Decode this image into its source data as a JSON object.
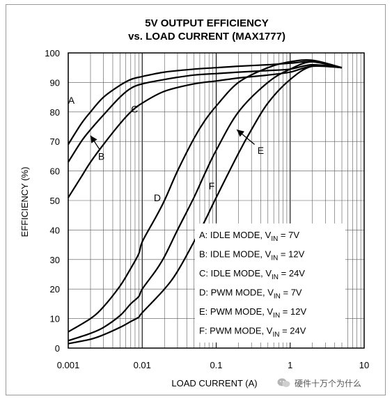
{
  "chart_data": {
    "type": "line",
    "title_line1": "5V OUTPUT EFFICIENCY",
    "title_line2": "vs. LOAD CURRENT (MAX1777)",
    "xlabel": "LOAD CURRENT (A)",
    "ylabel": "EFFICIENCY (%)",
    "x_scale": "log",
    "xlim": [
      0.001,
      10
    ],
    "ylim": [
      0,
      100
    ],
    "x_ticks": [
      0.001,
      0.01,
      0.1,
      1,
      10
    ],
    "x_tick_labels": [
      "0.001",
      "0.01",
      "0.1",
      "1",
      "10"
    ],
    "y_ticks": [
      0,
      10,
      20,
      30,
      40,
      50,
      60,
      70,
      80,
      90,
      100
    ],
    "y_tick_labels": [
      "0",
      "10",
      "20",
      "30",
      "40",
      "50",
      "60",
      "70",
      "80",
      "90",
      "100"
    ],
    "grid": true,
    "series": [
      {
        "name": "A",
        "label": "A: IDLE MODE, VIN = 7V",
        "x": [
          0.001,
          0.0015,
          0.002,
          0.003,
          0.005,
          0.007,
          0.01,
          0.02,
          0.05,
          0.1,
          0.2,
          0.5,
          1,
          2,
          5
        ],
        "y": [
          69,
          76,
          80,
          85,
          89,
          91,
          92,
          93.5,
          94.5,
          95,
          95.5,
          96,
          96.5,
          97,
          95
        ]
      },
      {
        "name": "B",
        "label": "B: IDLE MODE, VIN = 12V",
        "x": [
          0.001,
          0.0015,
          0.002,
          0.003,
          0.005,
          0.007,
          0.01,
          0.02,
          0.05,
          0.1,
          0.2,
          0.5,
          1,
          2,
          5
        ],
        "y": [
          63,
          70,
          74,
          79,
          85,
          88,
          89.5,
          91,
          92.5,
          93,
          93.5,
          94,
          94.5,
          96,
          95
        ]
      },
      {
        "name": "C",
        "label": "C: IDLE MODE, VIN = 24V",
        "x": [
          0.001,
          0.0015,
          0.002,
          0.003,
          0.005,
          0.007,
          0.01,
          0.02,
          0.05,
          0.1,
          0.2,
          0.5,
          1,
          2,
          5
        ],
        "y": [
          51,
          58,
          63,
          69,
          76,
          80,
          83,
          87,
          89.5,
          90.5,
          91.5,
          92.5,
          93.5,
          95.5,
          95
        ]
      },
      {
        "name": "D",
        "label": "D: PWM MODE, VIN = 7V",
        "x": [
          0.001,
          0.002,
          0.003,
          0.005,
          0.007,
          0.009,
          0.01,
          0.015,
          0.02,
          0.03,
          0.05,
          0.07,
          0.1,
          0.2,
          0.5,
          1,
          2,
          5
        ],
        "y": [
          5.5,
          10,
          14,
          21,
          27,
          32,
          36,
          44,
          50,
          60,
          71,
          77,
          82,
          90,
          95,
          97,
          97.5,
          95
        ]
      },
      {
        "name": "E",
        "label": "E: PWM MODE, VIN = 12V",
        "x": [
          0.001,
          0.002,
          0.003,
          0.005,
          0.007,
          0.009,
          0.01,
          0.015,
          0.02,
          0.03,
          0.05,
          0.07,
          0.1,
          0.2,
          0.5,
          1,
          2,
          5
        ],
        "y": [
          2.5,
          5,
          7,
          11,
          15,
          17.5,
          20,
          26,
          31,
          40,
          51,
          59,
          67,
          80,
          90,
          94.5,
          97,
          95
        ]
      },
      {
        "name": "F",
        "label": "F: PWM MODE, VIN = 24V",
        "x": [
          0.001,
          0.002,
          0.003,
          0.005,
          0.007,
          0.009,
          0.01,
          0.02,
          0.03,
          0.05,
          0.07,
          0.1,
          0.2,
          0.3,
          0.5,
          1,
          2,
          5
        ],
        "y": [
          1.5,
          3,
          4.5,
          7,
          9,
          10.5,
          12,
          20,
          26,
          36,
          43,
          51,
          66,
          74,
          83,
          91,
          95.5,
          95
        ]
      }
    ],
    "curve_labels": [
      {
        "text": "A",
        "x": 0.0011,
        "y": 84
      },
      {
        "text": "B",
        "x": 0.0028,
        "y": 65
      },
      {
        "text": "C",
        "x": 0.0079,
        "y": 81
      },
      {
        "text": "D",
        "x": 0.016,
        "y": 51
      },
      {
        "text": "E",
        "x": 0.4,
        "y": 67
      },
      {
        "text": "F",
        "x": 0.087,
        "y": 55
      }
    ],
    "arrows": [
      {
        "from_x": 0.0027,
        "from_y": 67,
        "to_x": 0.002,
        "to_y": 72
      },
      {
        "from_x": 0.33,
        "from_y": 69,
        "to_x": 0.19,
        "to_y": 74
      }
    ],
    "legend": {
      "placement": "bottom-right",
      "entries": [
        {
          "prefix": "A: IDLE MODE, V",
          "sub": "IN",
          "suffix": " = 7V"
        },
        {
          "prefix": "B: IDLE MODE, V",
          "sub": "IN",
          "suffix": " = 12V"
        },
        {
          "prefix": "C: IDLE MODE, V",
          "sub": "IN",
          "suffix": " = 24V"
        },
        {
          "prefix": "D: PWM MODE, V",
          "sub": "IN",
          "suffix": " = 7V"
        },
        {
          "prefix": "E: PWM MODE, V",
          "sub": "IN",
          "suffix": " = 12V"
        },
        {
          "prefix": "F: PWM MODE, V",
          "sub": "IN",
          "suffix": " = 24V"
        }
      ]
    }
  },
  "watermark": {
    "text": "硬件十万个为什么",
    "icon": "wechat-icon"
  }
}
